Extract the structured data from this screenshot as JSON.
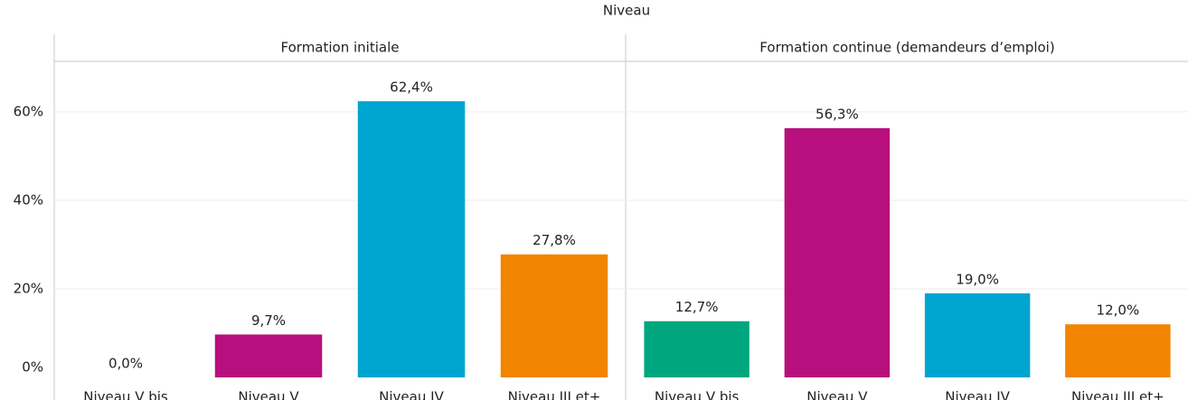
{
  "chart_data": {
    "type": "bar",
    "title": "Niveau",
    "ylim": [
      0,
      71.4
    ],
    "yticks": [
      {
        "value": 0,
        "label": "0%"
      },
      {
        "value": 20,
        "label": "20%"
      },
      {
        "value": 40,
        "label": "40%"
      },
      {
        "value": 60,
        "label": "60%"
      }
    ],
    "grid": true,
    "panels": [
      {
        "title": "Formation initiale",
        "categories": [
          "Niveau V bis",
          "Niveau V",
          "Niveau IV",
          "Niveau III et+"
        ],
        "values": [
          0.0,
          9.7,
          62.4,
          27.8
        ],
        "value_labels": [
          "0,0%",
          "9,7%",
          "62,4%",
          "27,8%"
        ],
        "colors": [
          "#00a67e",
          "#b80f7e",
          "#00a5cf",
          "#f28500"
        ]
      },
      {
        "title": "Formation continue (demandeurs d’emploi)",
        "categories": [
          "Niveau V bis",
          "Niveau V",
          "Niveau IV",
          "Niveau III et+"
        ],
        "values": [
          12.7,
          56.3,
          19.0,
          12.0
        ],
        "value_labels": [
          "12,7%",
          "56,3%",
          "19,0%",
          "12,0%"
        ],
        "colors": [
          "#00a67e",
          "#b80f7e",
          "#00a5cf",
          "#f28500"
        ]
      }
    ]
  }
}
